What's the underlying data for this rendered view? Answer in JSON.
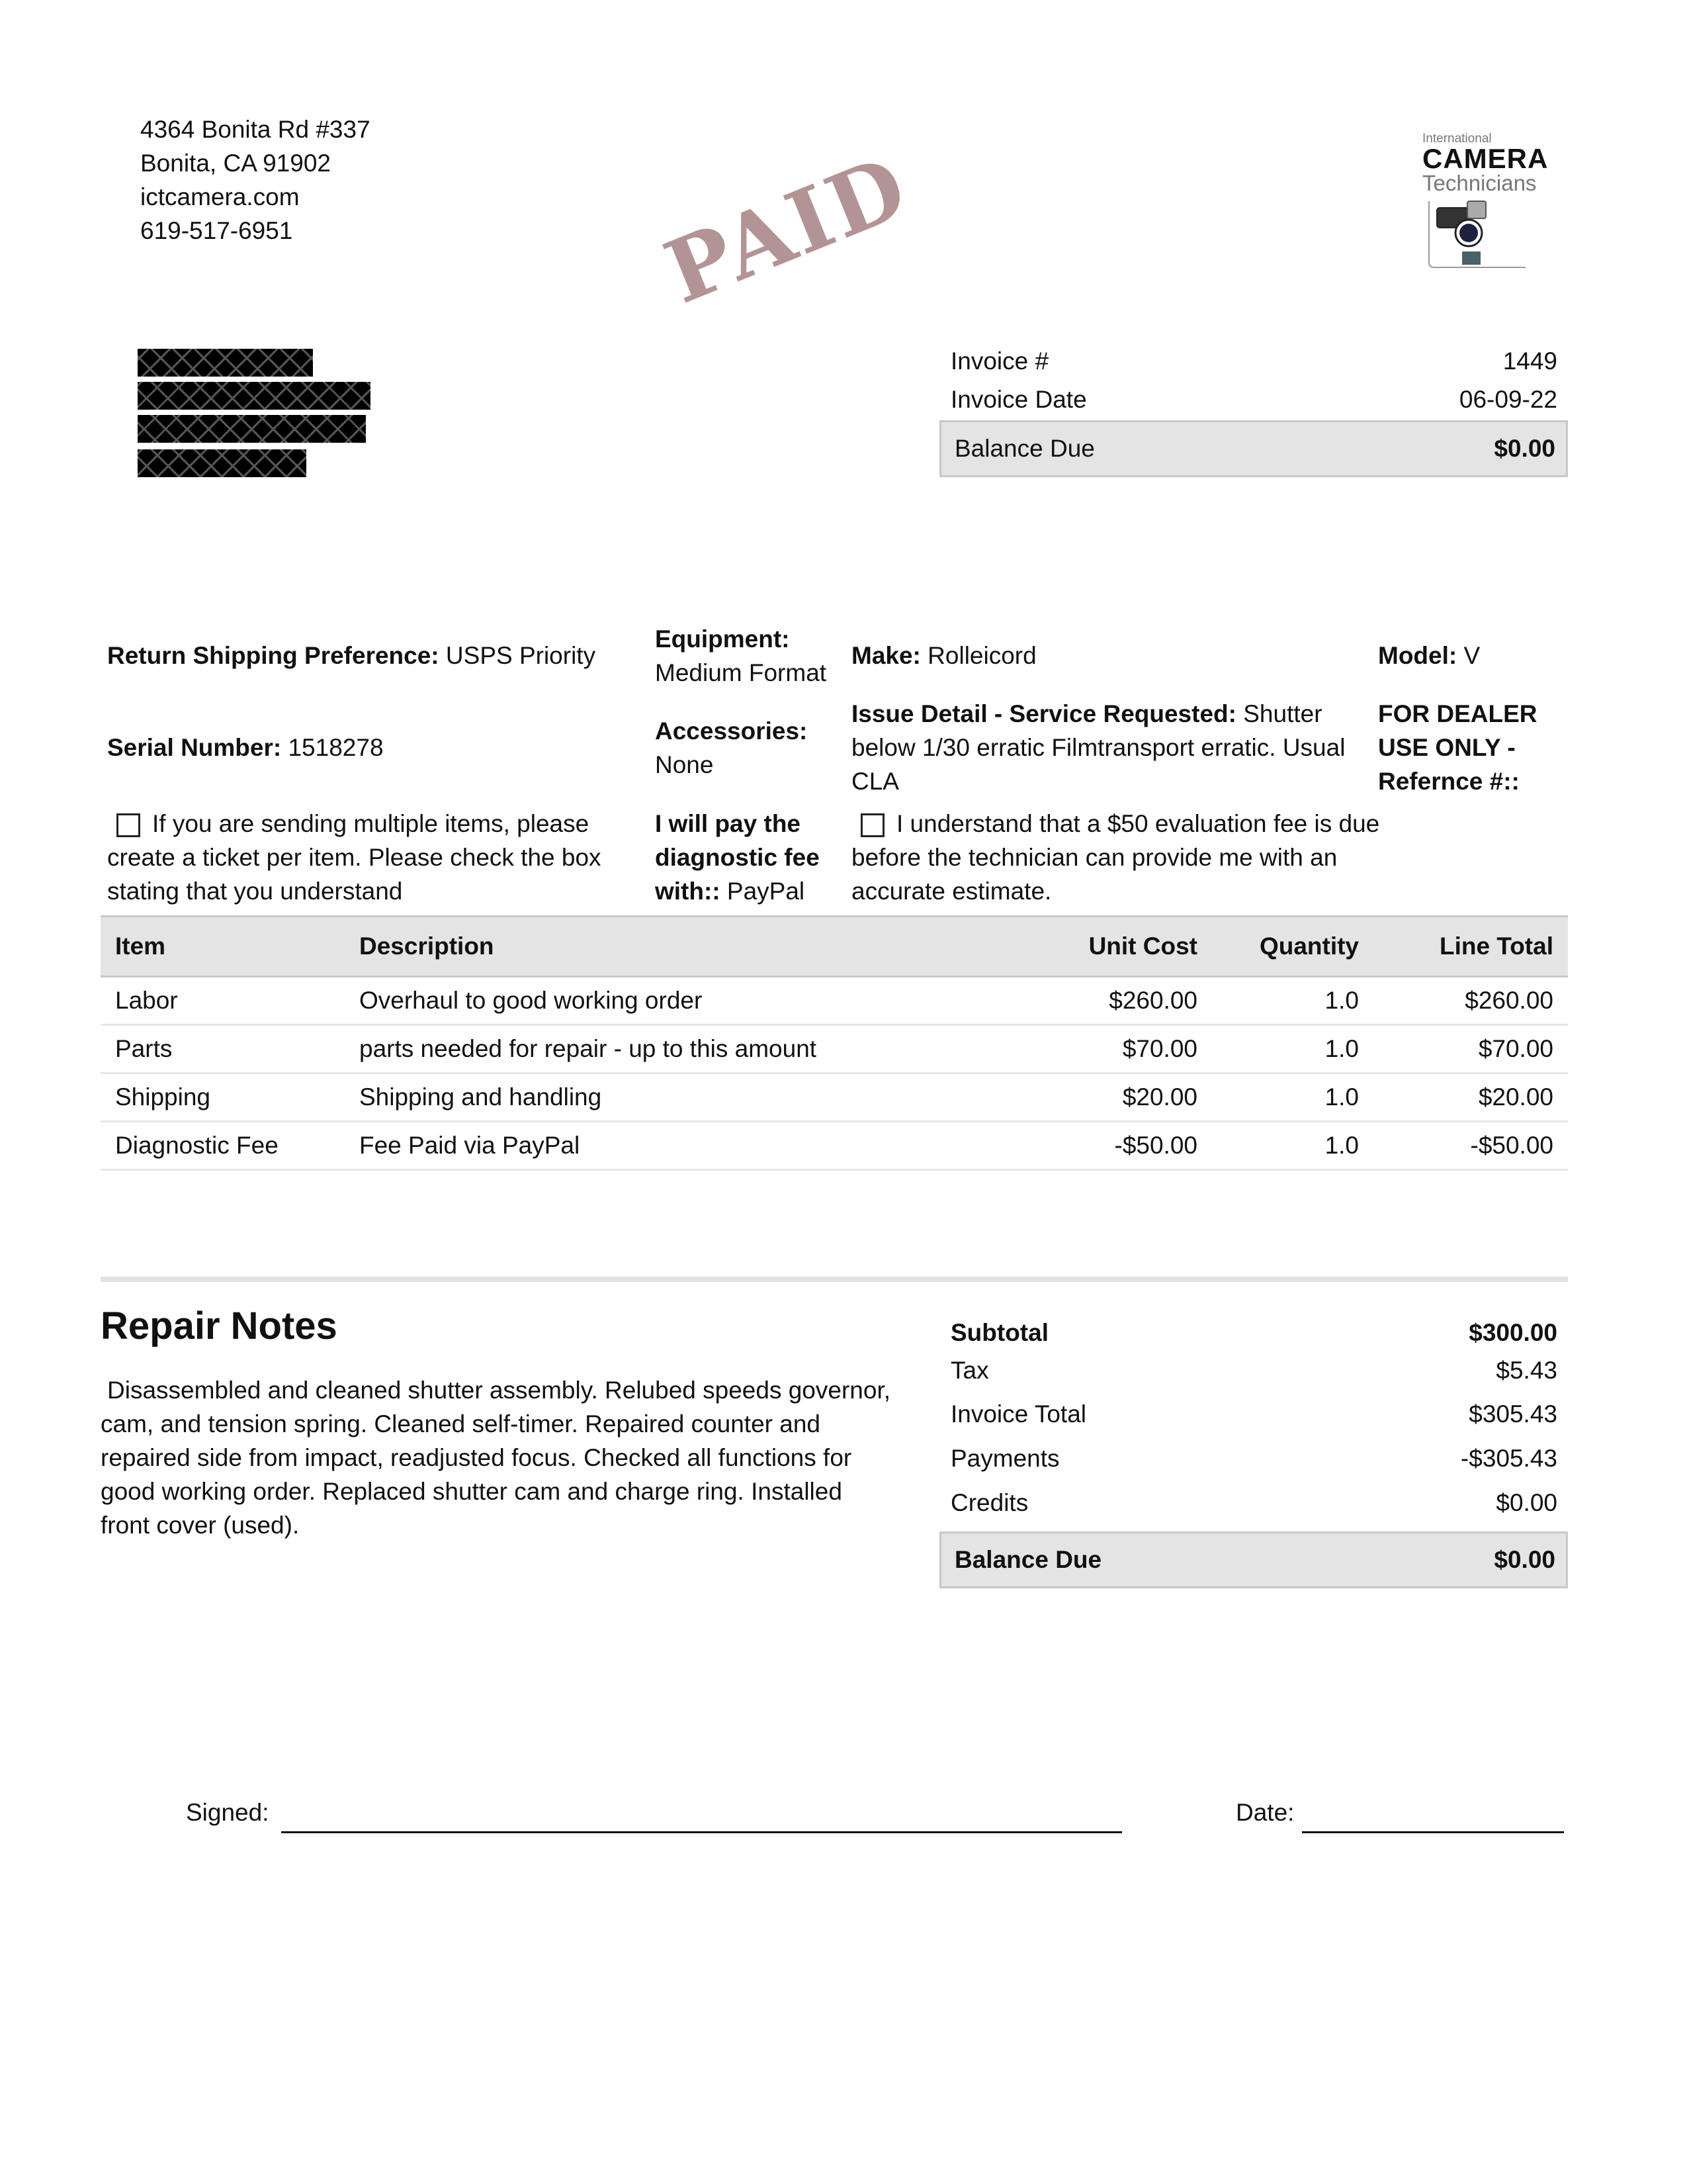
{
  "company": {
    "address_line1": "4364 Bonita Rd #337",
    "address_line2": "Bonita, CA 91902",
    "website": "ictcamera.com",
    "phone": "619-517-6951",
    "logo": {
      "line1": "International",
      "line2": "CAMERA",
      "line3": "Technicians"
    }
  },
  "stamp": "PAID",
  "invoice": {
    "number_label": "Invoice #",
    "number": "1449",
    "date_label": "Invoice Date",
    "date": "06-09-22",
    "balance_label": "Balance Due",
    "balance": "$0.00"
  },
  "info": {
    "shipping_label": "Return Shipping Preference:",
    "shipping": "USPS Priority",
    "equipment_label": "Equipment:",
    "equipment": "Medium Format",
    "make_label": "Make:",
    "make": "Rolleicord",
    "model_label": "Model:",
    "model": "V",
    "serial_label": "Serial Number:",
    "serial": "1518278",
    "accessories_label": "Accessories:",
    "accessories": "None",
    "issue_label": "Issue Detail - Service Requested:",
    "issue": "Shutter below 1/30 erratic Filmtransport erratic. Usual CLA",
    "dealer_label": "FOR DEALER USE ONLY - Refernce #::",
    "multi_items_text": "If you are sending multiple items, please create a ticket per item. Please check the box stating that you understand",
    "pay_label": "I will pay the diagnostic fee with::",
    "pay": "PayPal",
    "eval_fee_text": "I understand that a $50 evaluation fee is due before the technician can provide me with an accurate estimate."
  },
  "table": {
    "headers": [
      "Item",
      "Description",
      "Unit Cost",
      "Quantity",
      "Line Total"
    ],
    "rows": [
      [
        "Labor",
        "Overhaul to good working order",
        "$260.00",
        "1.0",
        "$260.00"
      ],
      [
        "Parts",
        "parts needed for repair - up to this amount",
        "$70.00",
        "1.0",
        "$70.00"
      ],
      [
        "Shipping",
        "Shipping and handling",
        "$20.00",
        "1.0",
        "$20.00"
      ],
      [
        "Diagnostic Fee",
        "Fee Paid via PayPal",
        "-$50.00",
        "1.0",
        "-$50.00"
      ]
    ]
  },
  "notes": {
    "title": "Repair Notes",
    "text": "Disassembled and cleaned shutter assembly. Relubed speeds governor, cam, and tension spring. Cleaned self-timer. Repaired counter and repaired side from impact, readjusted focus. Checked all functions for good working order. Replaced shutter cam and charge ring. Installed front cover (used)."
  },
  "totals": {
    "subtotal_label": "Subtotal",
    "subtotal": "$300.00",
    "tax_label": "Tax",
    "tax": "$5.43",
    "invoice_total_label": "Invoice Total",
    "invoice_total": "$305.43",
    "payments_label": "Payments",
    "payments": "-$305.43",
    "credits_label": "Credits",
    "credits": "$0.00",
    "balance_label": "Balance Due",
    "balance": "$0.00"
  },
  "signature": {
    "signed_label": "Signed:",
    "date_label": "Date:"
  },
  "colors": {
    "stamp": "#b39494",
    "header_gray": "#e4e4e4"
  }
}
